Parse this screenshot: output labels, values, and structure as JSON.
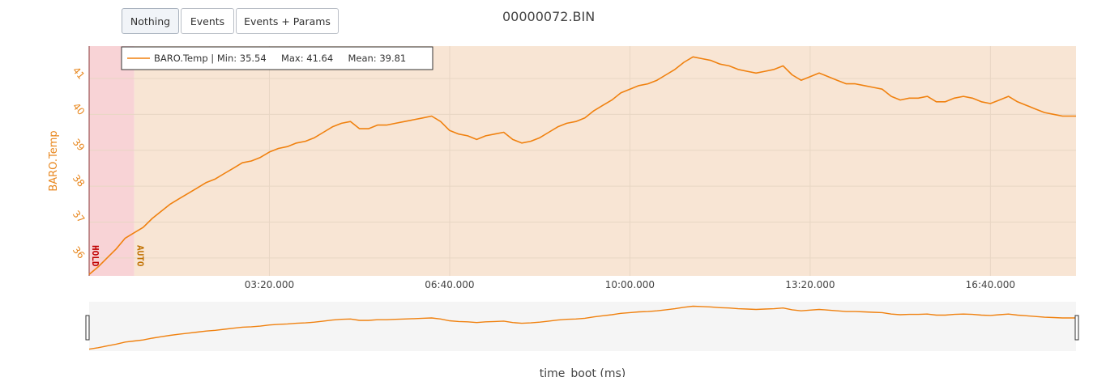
{
  "toolbar": {
    "buttons": [
      {
        "label": "Nothing",
        "active": true
      },
      {
        "label": "Events",
        "active": false
      },
      {
        "label": "Events + Params",
        "active": false
      }
    ]
  },
  "chart_data": {
    "type": "line",
    "title": "00000072.BIN",
    "xlabel": "time_boot (ms)",
    "ylabel": "BARO.Temp",
    "legend": {
      "text": "BARO.Temp | Min: 35.54     Max: 41.64     Mean: 39.81",
      "placement": "top-left"
    },
    "xlim": [
      0,
      1095
    ],
    "ylim": [
      35.5,
      41.9
    ],
    "x_tick_values": [
      200,
      400,
      600,
      800,
      1000
    ],
    "x_tick_labels": [
      "03:20.000",
      "06:40.000",
      "10:00.000",
      "13:20.000",
      "16:40.000"
    ],
    "y_ticks": [
      36,
      37,
      38,
      39,
      40,
      41
    ],
    "grid": true,
    "modes": [
      {
        "label": "HOLD",
        "start": 0,
        "end": 50,
        "color": "#f8d3d6",
        "label_color": "#c00000"
      },
      {
        "label": "AUTO",
        "start": 50,
        "end": 1095,
        "color": "#f8e5d4",
        "label_color": "#c07000"
      }
    ],
    "series": [
      {
        "name": "BARO.Temp",
        "color": "#f0810f",
        "x": [
          0,
          10,
          20,
          30,
          40,
          50,
          60,
          70,
          80,
          90,
          100,
          110,
          120,
          130,
          140,
          150,
          160,
          170,
          180,
          190,
          200,
          210,
          220,
          230,
          240,
          250,
          260,
          270,
          280,
          290,
          300,
          310,
          320,
          330,
          340,
          350,
          360,
          370,
          380,
          390,
          400,
          410,
          420,
          430,
          440,
          450,
          460,
          470,
          480,
          490,
          500,
          510,
          520,
          530,
          540,
          550,
          560,
          570,
          580,
          590,
          600,
          610,
          620,
          630,
          640,
          650,
          660,
          670,
          680,
          690,
          700,
          710,
          720,
          730,
          740,
          750,
          760,
          770,
          780,
          790,
          800,
          810,
          820,
          830,
          840,
          850,
          860,
          870,
          880,
          890,
          900,
          910,
          920,
          930,
          940,
          950,
          960,
          970,
          980,
          990,
          1000,
          1010,
          1020,
          1030,
          1040,
          1050,
          1060,
          1070,
          1080,
          1095
        ],
        "values": [
          35.54,
          35.75,
          36.0,
          36.25,
          36.55,
          36.7,
          36.85,
          37.1,
          37.3,
          37.5,
          37.65,
          37.8,
          37.95,
          38.1,
          38.2,
          38.35,
          38.5,
          38.65,
          38.7,
          38.8,
          38.95,
          39.05,
          39.1,
          39.2,
          39.25,
          39.35,
          39.5,
          39.65,
          39.75,
          39.8,
          39.6,
          39.6,
          39.7,
          39.7,
          39.75,
          39.8,
          39.85,
          39.9,
          39.95,
          39.8,
          39.55,
          39.45,
          39.4,
          39.3,
          39.4,
          39.45,
          39.5,
          39.3,
          39.2,
          39.25,
          39.35,
          39.5,
          39.65,
          39.75,
          39.8,
          39.9,
          40.1,
          40.25,
          40.4,
          40.6,
          40.7,
          40.8,
          40.85,
          40.95,
          41.1,
          41.25,
          41.45,
          41.6,
          41.55,
          41.5,
          41.4,
          41.35,
          41.25,
          41.2,
          41.15,
          41.2,
          41.25,
          41.35,
          41.1,
          40.95,
          41.05,
          41.15,
          41.05,
          40.95,
          40.85,
          40.85,
          40.8,
          40.75,
          40.7,
          40.5,
          40.4,
          40.45,
          40.45,
          40.5,
          40.35,
          40.35,
          40.45,
          40.5,
          40.45,
          40.35,
          40.3,
          40.4,
          40.5,
          40.35,
          40.25,
          40.15,
          40.05,
          40.0,
          39.95,
          39.95
        ]
      }
    ],
    "overview": {
      "xlim": [
        0,
        1095
      ],
      "ylim": [
        35.5,
        42.0
      ]
    }
  }
}
